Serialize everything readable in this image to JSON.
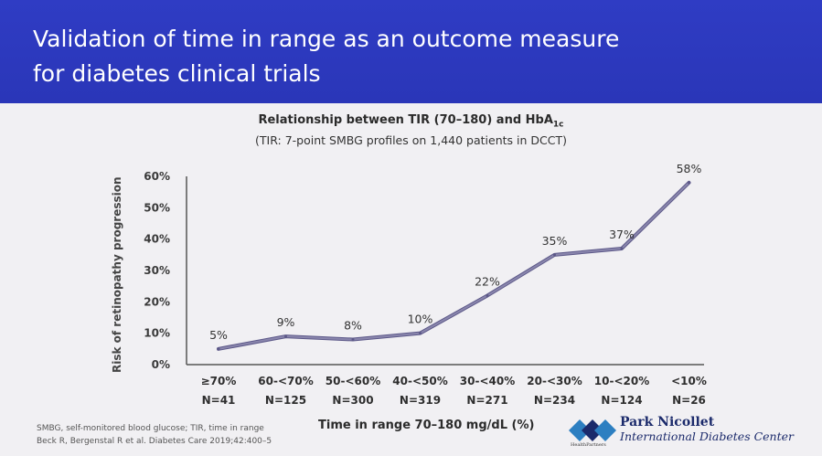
{
  "slide": {
    "title": "Validation of time in range as an outcome measure\nfor diabetes clinical trials"
  },
  "chart_data": {
    "type": "line",
    "title": "Relationship between TIR (70–180) and HbA",
    "title_subscript": "1c",
    "subtitle": "(TIR: 7-point SMBG profiles on 1,440 patients in DCCT)",
    "xlabel": "Time in range 70–180 mg/dL (%)",
    "ylabel": "Risk of retinopathy progression",
    "ylim": [
      0,
      60
    ],
    "yticks": [
      "0%",
      "10%",
      "20%",
      "30%",
      "40%",
      "50%",
      "60%"
    ],
    "categories": [
      "≥70%",
      "60-<70%",
      "50-<60%",
      "40-<50%",
      "30-<40%",
      "20-<30%",
      "10-<20%",
      "<10%"
    ],
    "n_labels": [
      "N=41",
      "N=125",
      "N=300",
      "N=319",
      "N=271",
      "N=234",
      "N=124",
      "N=26"
    ],
    "values": [
      5,
      9,
      8,
      10,
      22,
      35,
      37,
      58
    ],
    "data_labels": [
      "5%",
      "9%",
      "8%",
      "10%",
      "22%",
      "35%",
      "37%",
      "58%"
    ],
    "line_color": "#8a86ad",
    "grid": false
  },
  "footnote": {
    "line1": "SMBG, self-monitored blood glucose; TIR, time in range",
    "line2": "Beck R, Bergenstal R et al. Diabetes Care 2019;42:400–5"
  },
  "logo": {
    "name": "Park Nicollet",
    "subtitle": "International Diabetes Center",
    "tagline": "HealthPartners",
    "icon": "park-nicollet-diamond-logo"
  },
  "colors": {
    "header": "#2f3cc4",
    "background": "#f1f0f3",
    "axis": "#555555",
    "logo": "#1b2a6b"
  }
}
